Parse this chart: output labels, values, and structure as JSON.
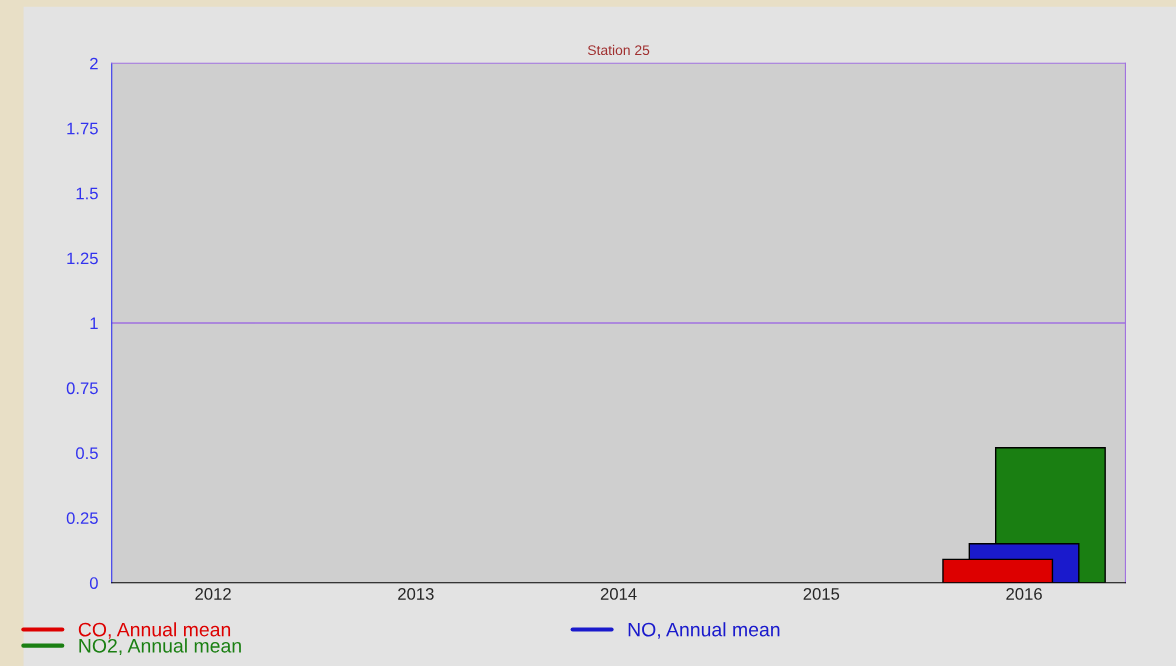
{
  "chart_data": {
    "type": "bar",
    "title": "Station 25",
    "categories": [
      "2012",
      "2013",
      "2014",
      "2015",
      "2016"
    ],
    "series": [
      {
        "name": "CO, Annual mean",
        "color": "#dd0000",
        "values": [
          null,
          null,
          null,
          null,
          0.09
        ]
      },
      {
        "name": "NO, Annual mean",
        "color": "#1a1acc",
        "values": [
          null,
          null,
          null,
          null,
          0.15
        ]
      },
      {
        "name": "NO2, Annual mean",
        "color": "#1a7f12",
        "values": [
          null,
          null,
          null,
          null,
          0.52
        ]
      }
    ],
    "ylim": [
      0,
      2
    ],
    "yticks": [
      0,
      0.25,
      0.5,
      0.75,
      1,
      1.25,
      1.5,
      1.75,
      2
    ],
    "ref_lines": [
      {
        "axis": "y",
        "value": 1,
        "color": "#a070e0"
      }
    ],
    "legend": "bottom left"
  }
}
